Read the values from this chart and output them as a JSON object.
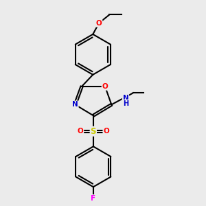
{
  "background_color": "#ebebeb",
  "bond_color": "#000000",
  "atom_colors": {
    "O": "#ff0000",
    "N": "#0000cc",
    "S": "#cccc00",
    "F": "#ff00ff",
    "NH": "#008080",
    "C": "#000000"
  },
  "fig_width": 3.0,
  "fig_height": 3.0,
  "dpi": 100
}
